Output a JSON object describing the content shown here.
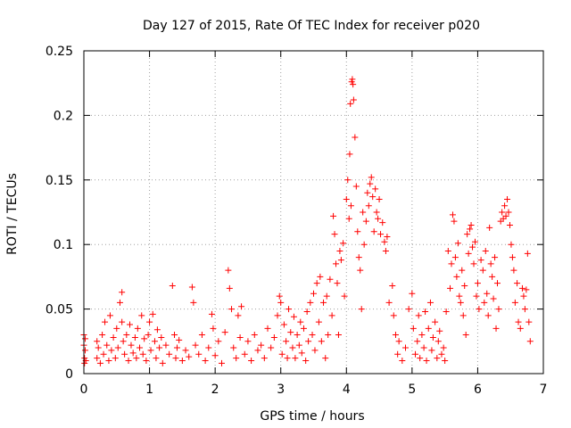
{
  "chart_data": {
    "type": "scatter",
    "title": "Day 127 of 2015, Rate Of TEC Index for receiver p020",
    "xlabel": "GPS time / hours",
    "ylabel": "ROTI / TECUs",
    "xlim": [
      0,
      7
    ],
    "ylim": [
      0,
      0.25
    ],
    "x_ticks": [
      "0",
      "1",
      "2",
      "3",
      "4",
      "5",
      "6",
      "7"
    ],
    "y_ticks": [
      "0",
      "0.05",
      "0.1",
      "0.15",
      "0.2",
      "0.25"
    ],
    "grid": true,
    "marker": "+",
    "color": "#ff0000",
    "points": [
      [
        0.0,
        0.03
      ],
      [
        0.0,
        0.022
      ],
      [
        0.01,
        0.012
      ],
      [
        0.01,
        0.008
      ],
      [
        0.02,
        0.027
      ],
      [
        0.02,
        0.018
      ],
      [
        0.03,
        0.01
      ],
      [
        0.2,
        0.025
      ],
      [
        0.2,
        0.012
      ],
      [
        0.22,
        0.02
      ],
      [
        0.25,
        0.008
      ],
      [
        0.28,
        0.03
      ],
      [
        0.3,
        0.015
      ],
      [
        0.32,
        0.04
      ],
      [
        0.35,
        0.022
      ],
      [
        0.38,
        0.01
      ],
      [
        0.4,
        0.045
      ],
      [
        0.42,
        0.018
      ],
      [
        0.45,
        0.028
      ],
      [
        0.48,
        0.012
      ],
      [
        0.5,
        0.035
      ],
      [
        0.52,
        0.02
      ],
      [
        0.55,
        0.055
      ],
      [
        0.58,
        0.063
      ],
      [
        0.58,
        0.04
      ],
      [
        0.6,
        0.025
      ],
      [
        0.62,
        0.015
      ],
      [
        0.65,
        0.03
      ],
      [
        0.68,
        0.01
      ],
      [
        0.7,
        0.038
      ],
      [
        0.72,
        0.022
      ],
      [
        0.75,
        0.016
      ],
      [
        0.78,
        0.028
      ],
      [
        0.8,
        0.012
      ],
      [
        0.82,
        0.035
      ],
      [
        0.85,
        0.02
      ],
      [
        0.88,
        0.045
      ],
      [
        0.9,
        0.015
      ],
      [
        0.92,
        0.027
      ],
      [
        0.95,
        0.01
      ],
      [
        0.98,
        0.03
      ],
      [
        1.0,
        0.04
      ],
      [
        1.02,
        0.018
      ],
      [
        1.05,
        0.046
      ],
      [
        1.08,
        0.025
      ],
      [
        1.1,
        0.012
      ],
      [
        1.12,
        0.034
      ],
      [
        1.15,
        0.02
      ],
      [
        1.18,
        0.028
      ],
      [
        1.2,
        0.008
      ],
      [
        1.25,
        0.022
      ],
      [
        1.3,
        0.015
      ],
      [
        1.35,
        0.068
      ],
      [
        1.38,
        0.03
      ],
      [
        1.4,
        0.012
      ],
      [
        1.42,
        0.02
      ],
      [
        1.45,
        0.026
      ],
      [
        1.5,
        0.01
      ],
      [
        1.55,
        0.018
      ],
      [
        1.6,
        0.013
      ],
      [
        1.65,
        0.067
      ],
      [
        1.67,
        0.055
      ],
      [
        1.7,
        0.022
      ],
      [
        1.75,
        0.015
      ],
      [
        1.8,
        0.03
      ],
      [
        1.85,
        0.01
      ],
      [
        1.9,
        0.02
      ],
      [
        1.95,
        0.046
      ],
      [
        1.97,
        0.035
      ],
      [
        2.0,
        0.014
      ],
      [
        2.05,
        0.025
      ],
      [
        2.1,
        0.008
      ],
      [
        2.15,
        0.032
      ],
      [
        2.2,
        0.08
      ],
      [
        2.22,
        0.066
      ],
      [
        2.25,
        0.05
      ],
      [
        2.28,
        0.02
      ],
      [
        2.32,
        0.012
      ],
      [
        2.35,
        0.045
      ],
      [
        2.38,
        0.028
      ],
      [
        2.4,
        0.052
      ],
      [
        2.45,
        0.015
      ],
      [
        2.5,
        0.025
      ],
      [
        2.55,
        0.01
      ],
      [
        2.6,
        0.03
      ],
      [
        2.65,
        0.018
      ],
      [
        2.7,
        0.022
      ],
      [
        2.75,
        0.012
      ],
      [
        2.8,
        0.035
      ],
      [
        2.85,
        0.02
      ],
      [
        2.9,
        0.028
      ],
      [
        2.95,
        0.045
      ],
      [
        2.98,
        0.06
      ],
      [
        3.0,
        0.055
      ],
      [
        3.02,
        0.015
      ],
      [
        3.05,
        0.038
      ],
      [
        3.08,
        0.025
      ],
      [
        3.1,
        0.012
      ],
      [
        3.12,
        0.05
      ],
      [
        3.15,
        0.032
      ],
      [
        3.18,
        0.02
      ],
      [
        3.2,
        0.044
      ],
      [
        3.22,
        0.012
      ],
      [
        3.25,
        0.03
      ],
      [
        3.28,
        0.022
      ],
      [
        3.3,
        0.04
      ],
      [
        3.32,
        0.016
      ],
      [
        3.35,
        0.035
      ],
      [
        3.38,
        0.01
      ],
      [
        3.4,
        0.048
      ],
      [
        3.42,
        0.025
      ],
      [
        3.45,
        0.055
      ],
      [
        3.48,
        0.03
      ],
      [
        3.5,
        0.062
      ],
      [
        3.52,
        0.018
      ],
      [
        3.55,
        0.07
      ],
      [
        3.58,
        0.04
      ],
      [
        3.6,
        0.075
      ],
      [
        3.62,
        0.025
      ],
      [
        3.65,
        0.055
      ],
      [
        3.68,
        0.012
      ],
      [
        3.7,
        0.06
      ],
      [
        3.72,
        0.03
      ],
      [
        3.75,
        0.073
      ],
      [
        3.78,
        0.045
      ],
      [
        3.8,
        0.122
      ],
      [
        3.82,
        0.108
      ],
      [
        3.84,
        0.085
      ],
      [
        3.86,
        0.07
      ],
      [
        3.88,
        0.03
      ],
      [
        3.9,
        0.095
      ],
      [
        3.92,
        0.088
      ],
      [
        3.95,
        0.101
      ],
      [
        3.97,
        0.06
      ],
      [
        4.0,
        0.135
      ],
      [
        4.02,
        0.15
      ],
      [
        4.04,
        0.12
      ],
      [
        4.05,
        0.17
      ],
      [
        4.06,
        0.209
      ],
      [
        4.07,
        0.13
      ],
      [
        4.08,
        0.226
      ],
      [
        4.09,
        0.228
      ],
      [
        4.1,
        0.224
      ],
      [
        4.11,
        0.212
      ],
      [
        4.13,
        0.183
      ],
      [
        4.15,
        0.145
      ],
      [
        4.17,
        0.11
      ],
      [
        4.19,
        0.09
      ],
      [
        4.21,
        0.08
      ],
      [
        4.23,
        0.05
      ],
      [
        4.25,
        0.125
      ],
      [
        4.27,
        0.1
      ],
      [
        4.3,
        0.118
      ],
      [
        4.32,
        0.14
      ],
      [
        4.34,
        0.13
      ],
      [
        4.36,
        0.147
      ],
      [
        4.38,
        0.152
      ],
      [
        4.4,
        0.137
      ],
      [
        4.42,
        0.11
      ],
      [
        4.44,
        0.143
      ],
      [
        4.46,
        0.125
      ],
      [
        4.48,
        0.12
      ],
      [
        4.5,
        0.135
      ],
      [
        4.52,
        0.108
      ],
      [
        4.55,
        0.117
      ],
      [
        4.58,
        0.102
      ],
      [
        4.6,
        0.095
      ],
      [
        4.62,
        0.106
      ],
      [
        4.65,
        0.055
      ],
      [
        4.7,
        0.068
      ],
      [
        4.72,
        0.045
      ],
      [
        4.75,
        0.03
      ],
      [
        4.78,
        0.015
      ],
      [
        4.8,
        0.025
      ],
      [
        4.85,
        0.01
      ],
      [
        4.9,
        0.02
      ],
      [
        4.95,
        0.05
      ],
      [
        5.0,
        0.062
      ],
      [
        5.02,
        0.035
      ],
      [
        5.05,
        0.015
      ],
      [
        5.08,
        0.025
      ],
      [
        5.1,
        0.045
      ],
      [
        5.12,
        0.012
      ],
      [
        5.15,
        0.03
      ],
      [
        5.18,
        0.02
      ],
      [
        5.2,
        0.048
      ],
      [
        5.22,
        0.01
      ],
      [
        5.25,
        0.035
      ],
      [
        5.28,
        0.055
      ],
      [
        5.3,
        0.018
      ],
      [
        5.32,
        0.028
      ],
      [
        5.35,
        0.04
      ],
      [
        5.38,
        0.012
      ],
      [
        5.4,
        0.025
      ],
      [
        5.42,
        0.033
      ],
      [
        5.45,
        0.015
      ],
      [
        5.48,
        0.02
      ],
      [
        5.5,
        0.01
      ],
      [
        5.52,
        0.048
      ],
      [
        5.55,
        0.095
      ],
      [
        5.58,
        0.066
      ],
      [
        5.6,
        0.085
      ],
      [
        5.62,
        0.123
      ],
      [
        5.64,
        0.118
      ],
      [
        5.66,
        0.09
      ],
      [
        5.68,
        0.075
      ],
      [
        5.7,
        0.101
      ],
      [
        5.72,
        0.06
      ],
      [
        5.74,
        0.055
      ],
      [
        5.76,
        0.08
      ],
      [
        5.78,
        0.045
      ],
      [
        5.8,
        0.068
      ],
      [
        5.82,
        0.03
      ],
      [
        5.84,
        0.108
      ],
      [
        5.86,
        0.093
      ],
      [
        5.88,
        0.112
      ],
      [
        5.9,
        0.115
      ],
      [
        5.92,
        0.098
      ],
      [
        5.94,
        0.085
      ],
      [
        5.96,
        0.102
      ],
      [
        5.98,
        0.06
      ],
      [
        6.0,
        0.07
      ],
      [
        6.02,
        0.05
      ],
      [
        6.05,
        0.088
      ],
      [
        6.08,
        0.08
      ],
      [
        6.1,
        0.055
      ],
      [
        6.12,
        0.095
      ],
      [
        6.14,
        0.062
      ],
      [
        6.16,
        0.045
      ],
      [
        6.18,
        0.113
      ],
      [
        6.2,
        0.085
      ],
      [
        6.22,
        0.075
      ],
      [
        6.24,
        0.058
      ],
      [
        6.26,
        0.09
      ],
      [
        6.28,
        0.035
      ],
      [
        6.3,
        0.07
      ],
      [
        6.32,
        0.05
      ],
      [
        6.35,
        0.118
      ],
      [
        6.37,
        0.125
      ],
      [
        6.39,
        0.12
      ],
      [
        6.41,
        0.13
      ],
      [
        6.43,
        0.122
      ],
      [
        6.45,
        0.135
      ],
      [
        6.47,
        0.125
      ],
      [
        6.49,
        0.115
      ],
      [
        6.51,
        0.1
      ],
      [
        6.53,
        0.09
      ],
      [
        6.55,
        0.08
      ],
      [
        6.57,
        0.055
      ],
      [
        6.6,
        0.07
      ],
      [
        6.62,
        0.04
      ],
      [
        6.65,
        0.035
      ],
      [
        6.68,
        0.066
      ],
      [
        6.7,
        0.06
      ],
      [
        6.72,
        0.05
      ],
      [
        6.74,
        0.065
      ],
      [
        6.76,
        0.093
      ],
      [
        6.78,
        0.04
      ],
      [
        6.8,
        0.025
      ]
    ]
  }
}
